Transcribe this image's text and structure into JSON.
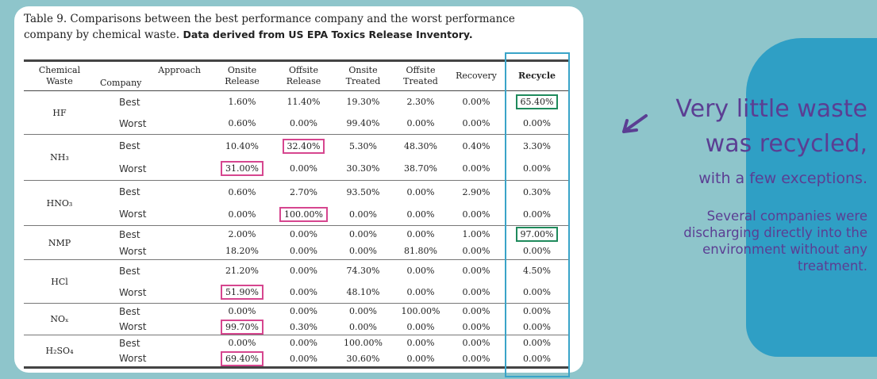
{
  "caption": {
    "text": "Table 9. Comparisons between the best performance company and the worst performance company by chemical waste.",
    "note": "Data derived from US EPA Toxics Release Inventory."
  },
  "table": {
    "headers": {
      "chemical": "Chemical Waste",
      "approach": "Approach",
      "company": "Company",
      "columns": [
        "Onsite Release",
        "Offsite Release",
        "Onsite Treated",
        "Offsite Treated",
        "Recovery",
        "Recycle"
      ]
    },
    "rows": [
      {
        "chemical": "HF",
        "entries": [
          {
            "company": "Best",
            "values": [
              "1.60%",
              "11.40%",
              "19.30%",
              "2.30%",
              "0.00%",
              "65.40%"
            ]
          },
          {
            "company": "Worst",
            "values": [
              "0.60%",
              "0.00%",
              "99.40%",
              "0.00%",
              "0.00%",
              "0.00%"
            ]
          }
        ]
      },
      {
        "chemical": "NH₃",
        "entries": [
          {
            "company": "Best",
            "values": [
              "10.40%",
              "32.40%",
              "5.30%",
              "48.30%",
              "0.40%",
              "3.30%"
            ]
          },
          {
            "company": "Worst",
            "values": [
              "31.00%",
              "0.00%",
              "30.30%",
              "38.70%",
              "0.00%",
              "0.00%"
            ]
          }
        ]
      },
      {
        "chemical": "HNO₃",
        "entries": [
          {
            "company": "Best",
            "values": [
              "0.60%",
              "2.70%",
              "93.50%",
              "0.00%",
              "2.90%",
              "0.30%"
            ]
          },
          {
            "company": "Worst",
            "values": [
              "0.00%",
              "100.00%",
              "0.00%",
              "0.00%",
              "0.00%",
              "0.00%"
            ]
          }
        ]
      },
      {
        "chemical": "NMP",
        "entries": [
          {
            "company": "Best",
            "values": [
              "2.00%",
              "0.00%",
              "0.00%",
              "0.00%",
              "1.00%",
              "97.00%"
            ]
          },
          {
            "company": "Worst",
            "values": [
              "18.20%",
              "0.00%",
              "0.00%",
              "81.80%",
              "0.00%",
              "0.00%"
            ]
          }
        ]
      },
      {
        "chemical": "HCl",
        "entries": [
          {
            "company": "Best",
            "values": [
              "21.20%",
              "0.00%",
              "74.30%",
              "0.00%",
              "0.00%",
              "4.50%"
            ]
          },
          {
            "company": "Worst",
            "values": [
              "51.90%",
              "0.00%",
              "48.10%",
              "0.00%",
              "0.00%",
              "0.00%"
            ]
          }
        ]
      },
      {
        "chemical": "NOₓ",
        "entries": [
          {
            "company": "Best",
            "values": [
              "0.00%",
              "0.00%",
              "0.00%",
              "100.00%",
              "0.00%",
              "0.00%"
            ]
          },
          {
            "company": "Worst",
            "values": [
              "99.70%",
              "0.30%",
              "0.00%",
              "0.00%",
              "0.00%",
              "0.00%"
            ]
          }
        ]
      },
      {
        "chemical": "H₂SO₄",
        "entries": [
          {
            "company": "Best",
            "values": [
              "0.00%",
              "0.00%",
              "100.00%",
              "0.00%",
              "0.00%",
              "0.00%"
            ]
          },
          {
            "company": "Worst",
            "values": [
              "69.40%",
              "0.00%",
              "30.60%",
              "0.00%",
              "0.00%",
              "0.00%"
            ]
          }
        ]
      }
    ]
  },
  "callout": {
    "line1": "Very little waste",
    "line2": "was recycled,",
    "line3": "with a few exceptions.",
    "paragraph": "Several companies were discharging directly into the environment without any treatment."
  }
}
